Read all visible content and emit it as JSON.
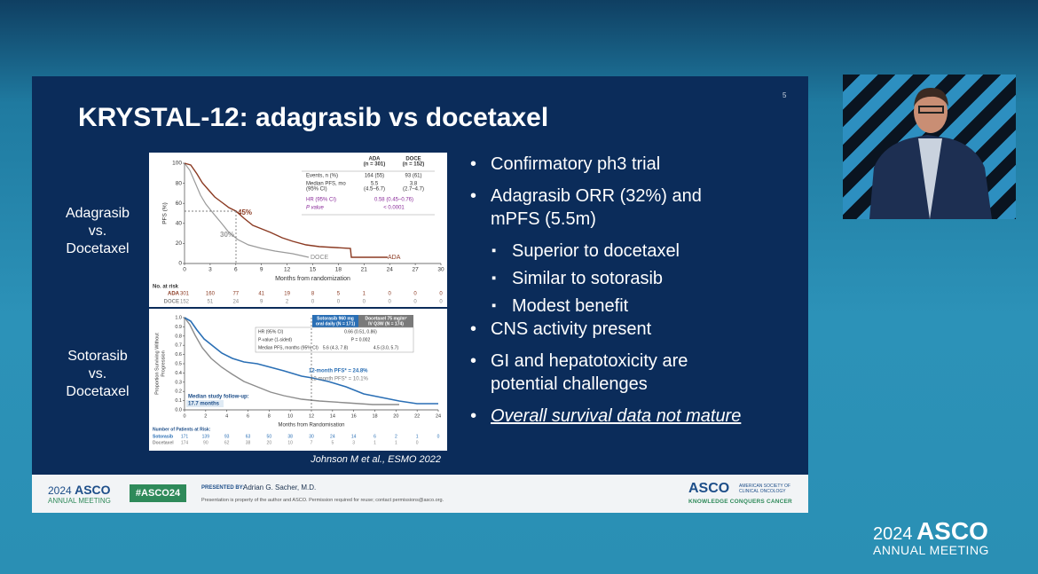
{
  "slide": {
    "page_number": "5",
    "title": "KRYSTAL-12: adagrasib vs docetaxel",
    "row_labels": [
      [
        "Adagrasib",
        "vs.",
        "Docetaxel"
      ],
      [
        "Sotorasib",
        "vs.",
        "Docetaxel"
      ]
    ],
    "figure_top": {
      "y_label": "PFS (%)",
      "x_label": "Months from randomization",
      "y_ticks": [
        "0",
        "20",
        "40",
        "60",
        "80",
        "100"
      ],
      "x_ticks": [
        "0",
        "3",
        "6",
        "9",
        "12",
        "15",
        "18",
        "21",
        "24",
        "27",
        "30"
      ],
      "table": {
        "columns": [
          [
            "ADA",
            "(n = 301)"
          ],
          [
            "DOCE",
            "(n = 152)"
          ]
        ],
        "rows": [
          {
            "label": [
              "Events, n (%)"
            ],
            "cells": [
              [
                "164 (55)"
              ],
              [
                "93 (61)"
              ]
            ]
          },
          {
            "label": [
              "Median PFS, mo",
              "(95% CI)"
            ],
            "cells": [
              [
                "5.5",
                "(4.5–6.7)"
              ],
              [
                "3.8",
                "(2.7–4.7)"
              ]
            ]
          },
          {
            "label": [
              "HR (95% CI)"
            ],
            "cells": [
              [
                "0.58 (0.45–0.76)"
              ]
            ]
          },
          {
            "label": [
              "P value"
            ],
            "cells": [
              [
                "< 0.0001"
              ]
            ]
          }
        ]
      },
      "ada_rate": "45%",
      "doce_rate": "30%",
      "ada_label": "ADA",
      "doce_label": "DOCE",
      "at_risk": {
        "title": "No. at risk",
        "rows": [
          {
            "name": "ADA",
            "counts": [
              "301",
              "160",
              "77",
              "41",
              "19",
              "8",
              "5",
              "1",
              "0",
              "0",
              "0"
            ]
          },
          {
            "name": "DOCE",
            "counts": [
              "152",
              "51",
              "24",
              "9",
              "2",
              "0",
              "0",
              "0",
              "0",
              "0",
              "0"
            ]
          }
        ]
      }
    },
    "figure_bottom": {
      "y_label": [
        "Proportion Surviving Without",
        "Progression"
      ],
      "x_label": "Months from Randomisation",
      "y_ticks": [
        "0.0",
        "0.1",
        "0.2",
        "0.3",
        "0.4",
        "0.5",
        "0.6",
        "0.7",
        "0.8",
        "0.9",
        "1.0"
      ],
      "x_ticks": [
        "0",
        "2",
        "4",
        "6",
        "8",
        "10",
        "12",
        "14",
        "16",
        "18",
        "20",
        "22",
        "24"
      ],
      "table": {
        "columns": [
          [
            "Sotorasib 960 mg",
            "oral daily (N = 171)"
          ],
          [
            "Docetaxel 75 mg/m²",
            "IV Q3W (N = 174)"
          ]
        ],
        "rows": [
          {
            "label": [
              "HR (95% CI)"
            ],
            "cells": [
              [
                "0.66 (0.51, 0.86)"
              ]
            ]
          },
          {
            "label": [
              "P-value (1-sided)"
            ],
            "cells": [
              [
                "P = 0.002"
              ]
            ]
          },
          {
            "label": [
              "Median PFS, months (95% CI)"
            ],
            "cells": [
              [
                "5.6 (4.3, 7.8)"
              ],
              [
                "4.5 (3.0, 5.7)"
              ]
            ]
          }
        ]
      },
      "soto_rate": "12-month PFS* = 24.8%",
      "doce_rate": "12-month PFS* = 10.1%",
      "follow_up": [
        "Median study follow-up:",
        "17.7 months"
      ],
      "at_risk": {
        "title": "Number of Patients at Risk:",
        "rows": [
          {
            "name": "Sotorasib",
            "counts": [
              "171",
              "139",
              "93",
              "63",
              "50",
              "38",
              "30",
              "24",
              "14",
              "6",
              "2",
              "1",
              "0"
            ]
          },
          {
            "name": "Docetaxel",
            "counts": [
              "174",
              "90",
              "62",
              "38",
              "20",
              "10",
              "7",
              "5",
              "3",
              "1",
              "1",
              "0"
            ]
          }
        ]
      }
    },
    "citation": "Johnson M et al., ESMO 2022",
    "bullets": [
      {
        "text": "Confirmatory ph3 trial"
      },
      {
        "text": "Adagrasib ORR (32%) and mPFS (5.5m)",
        "sub": [
          "Superior to docetaxel",
          "Similar to sotorasib",
          "Modest benefit"
        ]
      },
      {
        "text": "CNS activity present"
      },
      {
        "text": "GI and hepatotoxicity are potential challenges"
      },
      {
        "text": "Overall survival data not mature"
      }
    ],
    "footer": {
      "logo_year": "2024",
      "logo_brand": "ASCO",
      "logo_event": "ANNUAL MEETING",
      "hashtag": "#ASCO24",
      "presented_by_label": "PRESENTED BY:",
      "presenter": "Adrian G. Sacher, M.D.",
      "notice": "Presentation is property of the author and ASCO. Permission required for reuse; contact permissions@asco.org.",
      "org_logo": "ASCO",
      "org_name": [
        "AMERICAN SOCIETY OF",
        "CLINICAL ONCOLOGY"
      ],
      "tagline": "KNOWLEDGE CONQUERS CANCER"
    }
  },
  "overlay": {
    "year": "2024",
    "brand": "ASCO",
    "event": "ANNUAL MEETING"
  }
}
